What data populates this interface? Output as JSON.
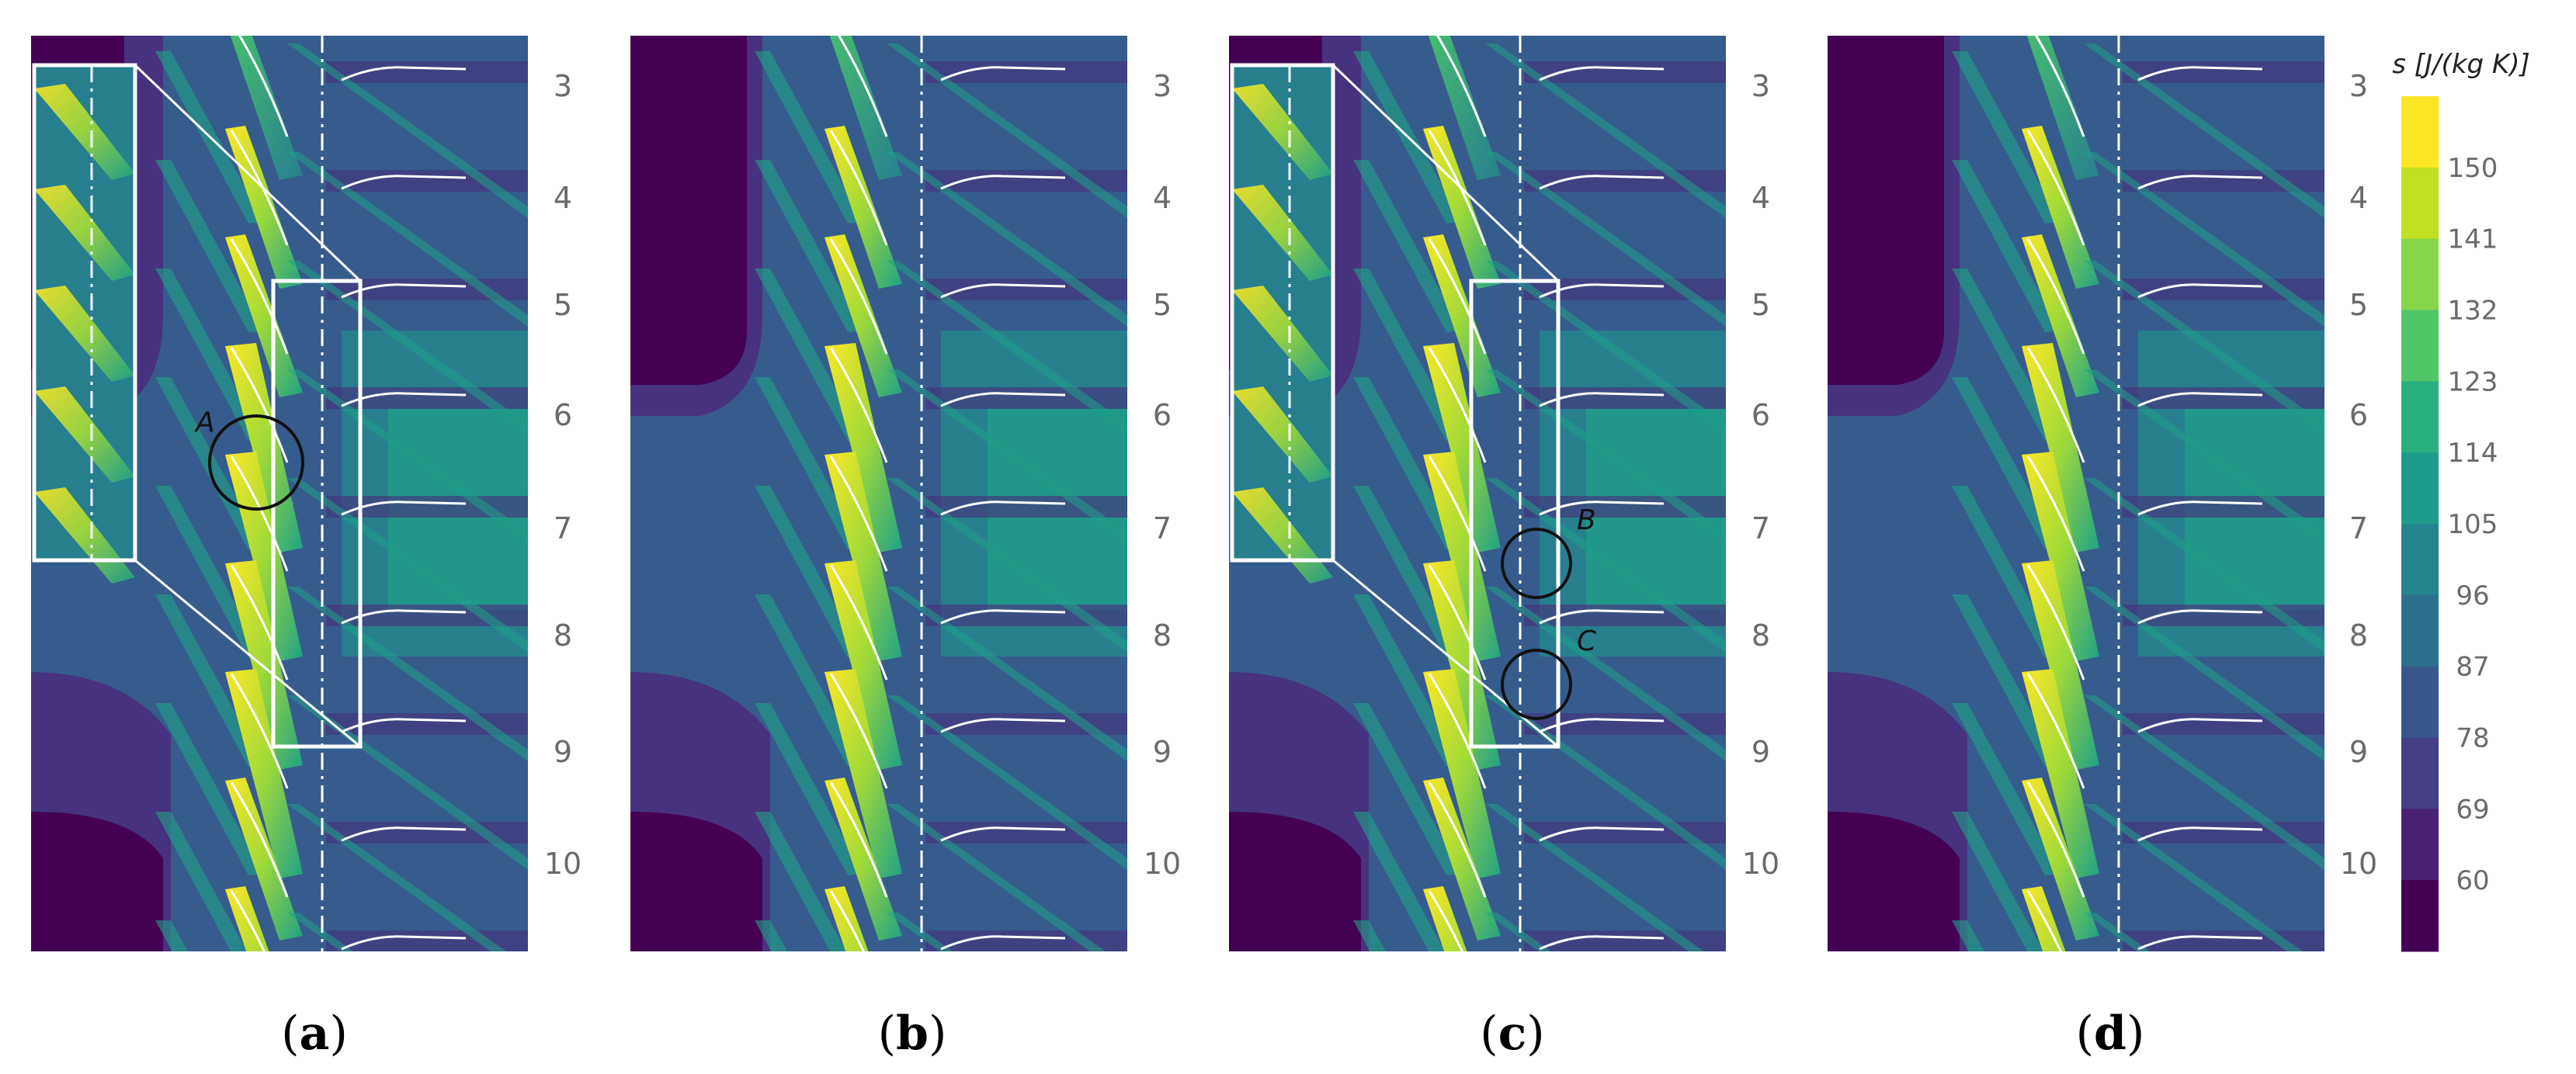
{
  "row_labels": [
    "3",
    "4",
    "5",
    "6",
    "7",
    "8",
    "9",
    "10"
  ],
  "panels": [
    {
      "id": "a",
      "caption": "a",
      "markers": [
        {
          "label": "A"
        }
      ],
      "zoom_inset": true
    },
    {
      "id": "b",
      "caption": "b",
      "markers": [],
      "zoom_inset": false
    },
    {
      "id": "c",
      "caption": "c",
      "markers": [
        {
          "label": "B"
        },
        {
          "label": "C"
        }
      ],
      "zoom_inset": true
    },
    {
      "id": "d",
      "caption": "d",
      "markers": [],
      "zoom_inset": false
    }
  ],
  "colorbar": {
    "title": "s [J/(kg K)]",
    "ticks": [
      "150",
      "141",
      "132",
      "123",
      "114",
      "105",
      "96",
      "87",
      "78",
      "69",
      "60"
    ],
    "colors": [
      "#fde725",
      "#c2df23",
      "#86d549",
      "#52c569",
      "#2ab07f",
      "#1e9b8a",
      "#25858e",
      "#2d708e",
      "#38588c",
      "#433e85",
      "#482173",
      "#440154"
    ]
  },
  "palette": {
    "deep": "#440154",
    "low": "#46327e",
    "mid_low": "#365c8d",
    "mid": "#277f8e",
    "mid_high": "#1fa187",
    "high": "#4ac16d",
    "higher": "#a0da39",
    "max": "#fde725"
  }
}
